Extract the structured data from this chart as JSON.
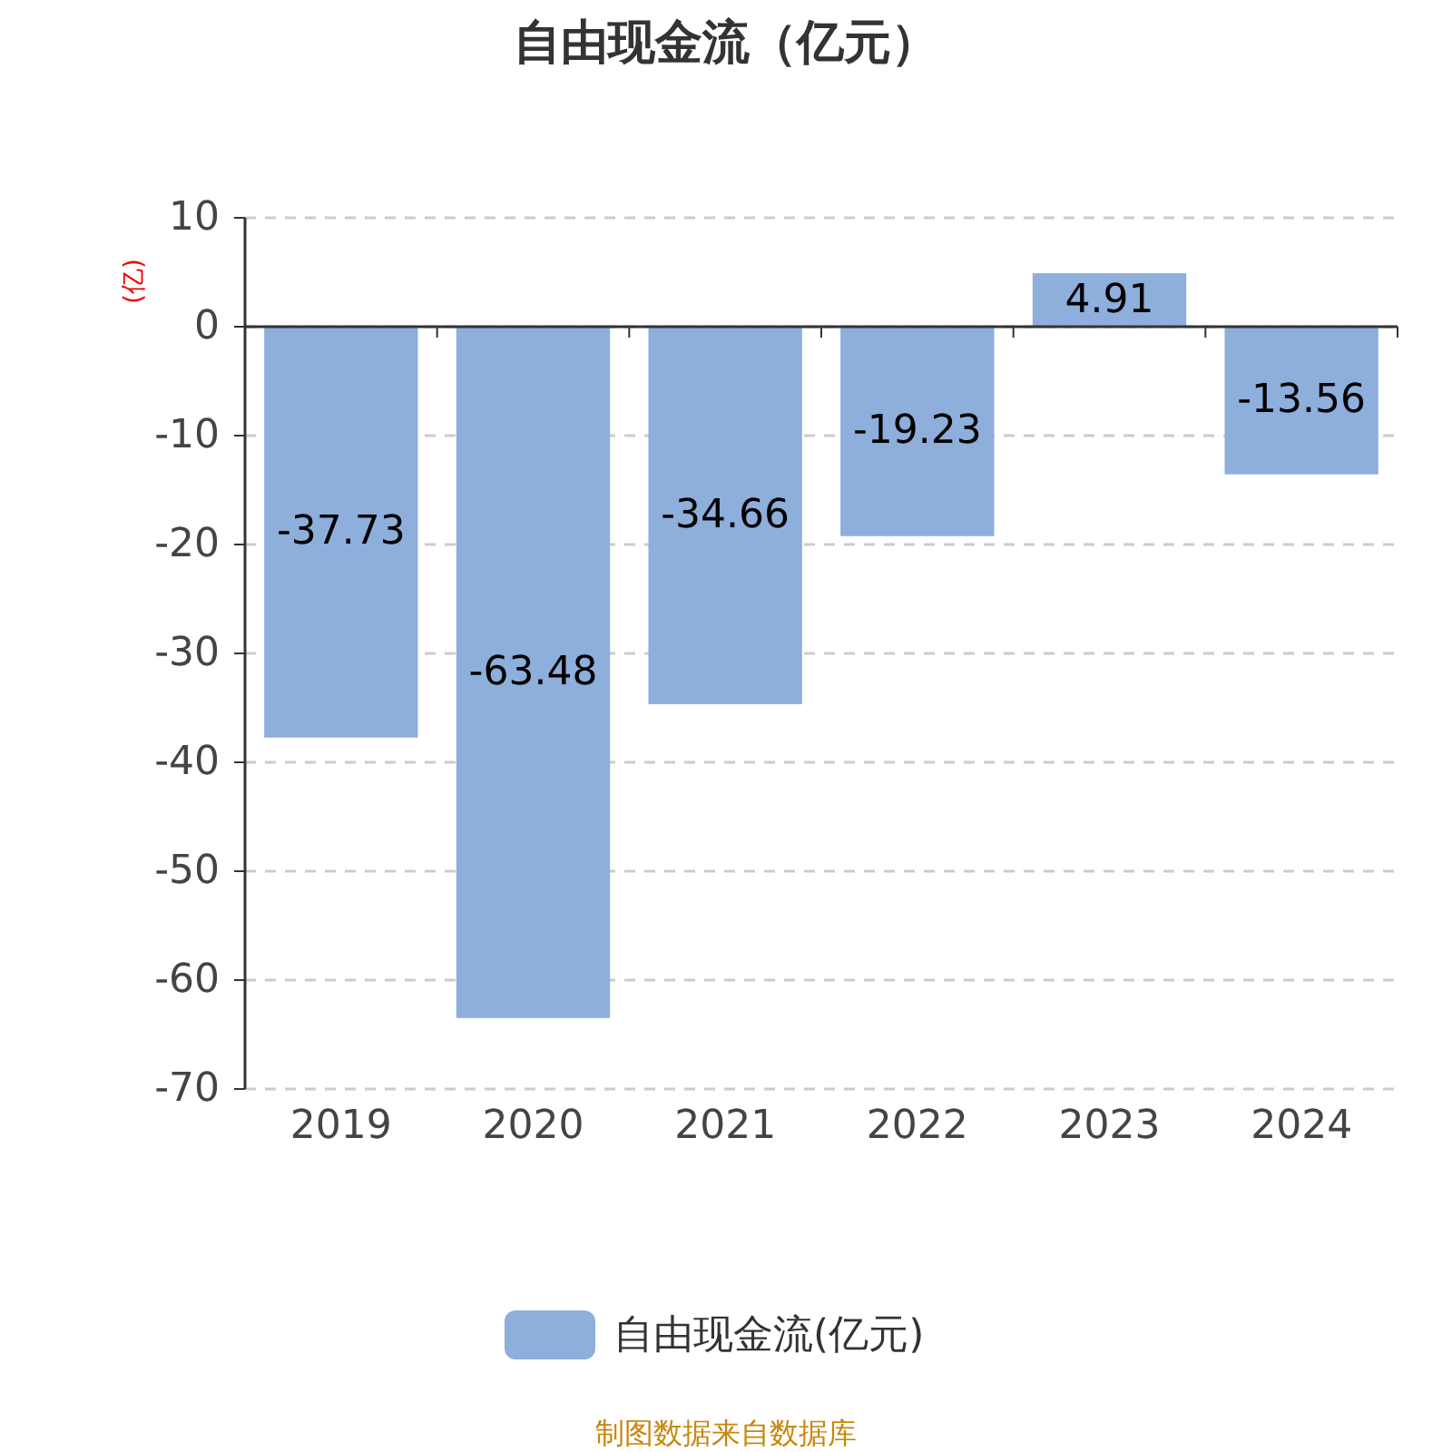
{
  "chart_data": {
    "type": "bar",
    "title": "自由现金流（亿元）",
    "ylabel": "(亿)",
    "categories": [
      "2019",
      "2020",
      "2021",
      "2022",
      "2023",
      "2024"
    ],
    "series": [
      {
        "name": "自由现金流(亿元)",
        "color": "#8eaedb",
        "values": [
          -37.73,
          -63.48,
          -34.66,
          -19.23,
          4.91,
          -13.56
        ]
      }
    ],
    "ylim": [
      -70,
      10
    ],
    "yticks": [
      10,
      0,
      -10,
      -20,
      -30,
      -40,
      -50,
      -60,
      -70
    ],
    "grid": "y",
    "legend": "bottom",
    "data_labels": true,
    "annotations": [
      "制图数据来自数据库"
    ]
  }
}
